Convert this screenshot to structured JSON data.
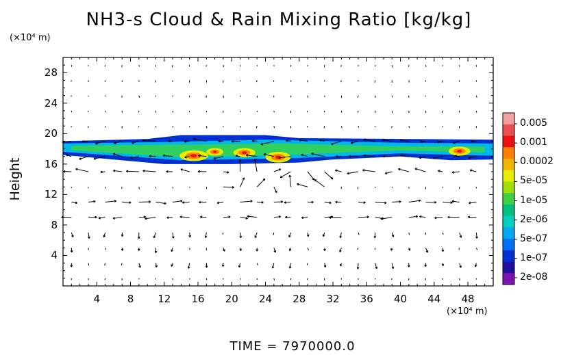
{
  "chart_data": {
    "type": "heatmap",
    "title": "NH3-s Cloud & Rain Mixing Ratio [kg/kg]",
    "ylabel": "Height",
    "x_unit": "(×10⁴ m)",
    "y_unit": "(×10⁴ m)",
    "xlim": [
      0,
      51
    ],
    "ylim": [
      0,
      30
    ],
    "x_ticks": [
      4,
      8,
      12,
      16,
      20,
      24,
      28,
      32,
      36,
      40,
      44,
      48
    ],
    "y_ticks": [
      4,
      8,
      12,
      16,
      20,
      24,
      28
    ],
    "colorbar_labels": [
      "0.005",
      "0.001",
      "0.0002",
      "5e-05",
      "1e-05",
      "2e-06",
      "5e-07",
      "1e-07",
      "2e-08"
    ],
    "colorbar_colors": [
      "#f4a0a0",
      "#e85050",
      "#ee1010",
      "#ff8000",
      "#f2b400",
      "#e8ec00",
      "#a0e000",
      "#40d040",
      "#00c080",
      "#00d0c0",
      "#00a8f0",
      "#0070f0",
      "#0030d0",
      "#2010a0",
      "#8010b0"
    ],
    "footer": "TIME = 7970000.0"
  }
}
